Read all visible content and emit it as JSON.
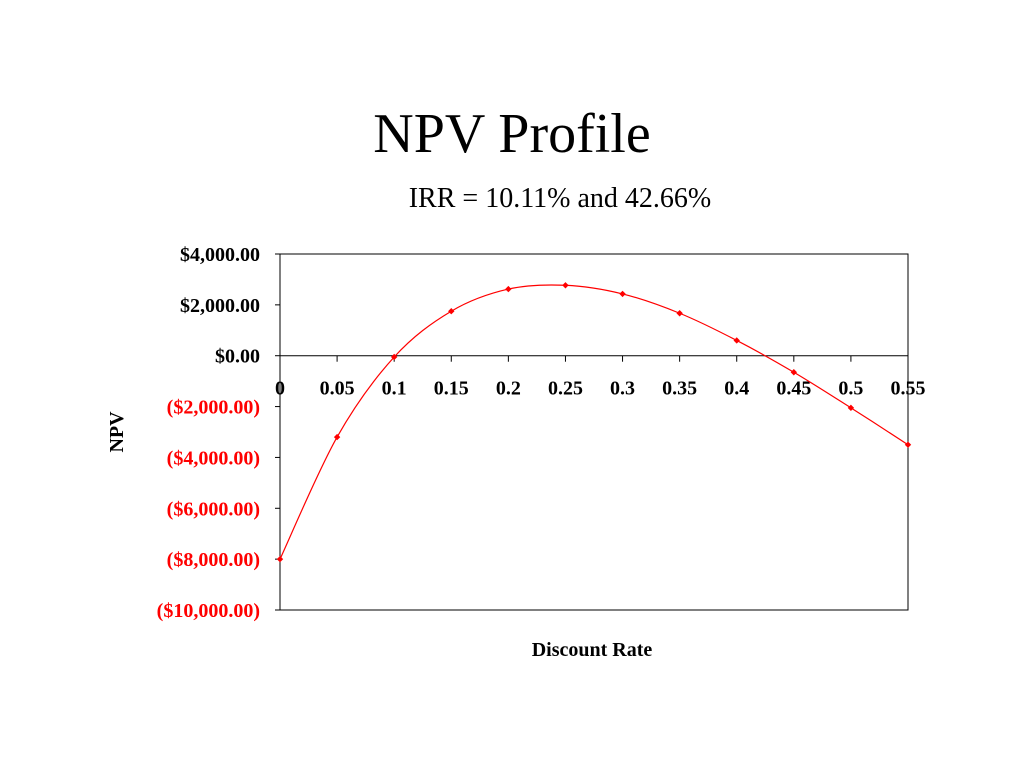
{
  "slide": {
    "title": "NPV Profile",
    "subtitle": "IRR = 10.11% and 42.66%"
  },
  "chart_data": {
    "type": "line",
    "xlabel": "Discount Rate",
    "ylabel": "NPV",
    "x": [
      0,
      0.05,
      0.1,
      0.15,
      0.2,
      0.25,
      0.3,
      0.35,
      0.4,
      0.45,
      0.5,
      0.55
    ],
    "x_tick_labels": [
      "0",
      "0.05",
      "0.1",
      "0.15",
      "0.2",
      "0.25",
      "0.3",
      "0.35",
      "0.4",
      "0.45",
      "0.5",
      "0.55"
    ],
    "series": [
      {
        "values": [
          -8000,
          -3200,
          -50,
          1750,
          2620,
          2770,
          2430,
          1670,
          600,
          -650,
          -2050,
          -3500
        ],
        "color": "#ff0000"
      }
    ],
    "ylim": [
      -10000,
      4000
    ],
    "y_ticks": [
      {
        "value": 4000,
        "label": "$4,000.00",
        "color": "#000000"
      },
      {
        "value": 2000,
        "label": "$2,000.00",
        "color": "#000000"
      },
      {
        "value": 0,
        "label": "$0.00",
        "color": "#000000"
      },
      {
        "value": -2000,
        "label": "($2,000.00)",
        "color": "#ff0000"
      },
      {
        "value": -4000,
        "label": "($4,000.00)",
        "color": "#ff0000"
      },
      {
        "value": -6000,
        "label": "($6,000.00)",
        "color": "#ff0000"
      },
      {
        "value": -8000,
        "label": "($8,000.00)",
        "color": "#ff0000"
      },
      {
        "value": -10000,
        "label": "($10,000.00)",
        "color": "#ff0000"
      }
    ],
    "grid": false,
    "legend": "none",
    "smooth": true
  }
}
